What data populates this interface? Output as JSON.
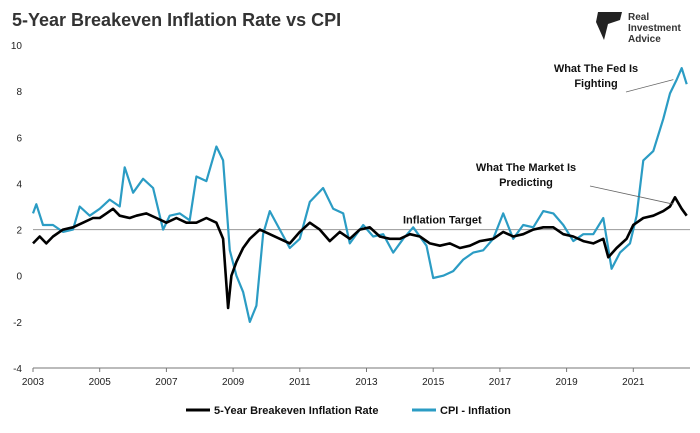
{
  "chart_data": {
    "type": "line",
    "title": "5-Year Breakeven Inflation Rate vs CPI",
    "xlabel": "",
    "ylabel": "",
    "xlim": [
      2003,
      2022.7
    ],
    "ylim": [
      -4,
      10
    ],
    "x_ticks": [
      "2003",
      "2005",
      "2007",
      "2009",
      "2011",
      "2013",
      "2015",
      "2017",
      "2019",
      "2021"
    ],
    "y_ticks": [
      "-4",
      "-2",
      "0",
      "2",
      "4",
      "6",
      "8",
      "10"
    ],
    "grid": false,
    "legend_position": "bottom",
    "reference_line": {
      "value": 2,
      "label": "Inflation Target"
    },
    "annotations": [
      {
        "lines": [
          "What The Fed Is",
          "Fighting"
        ],
        "x": 2021.9,
        "y": 8.7
      },
      {
        "lines": [
          "What The Market Is",
          "Predicting"
        ],
        "x": 2021.75,
        "y": 3.2
      }
    ],
    "series": [
      {
        "name": "5-Year Breakeven Inflation Rate",
        "color": "#000000",
        "points": [
          [
            2003.0,
            1.4
          ],
          [
            2003.2,
            1.7
          ],
          [
            2003.4,
            1.4
          ],
          [
            2003.6,
            1.7
          ],
          [
            2003.9,
            2.0
          ],
          [
            2004.2,
            2.1
          ],
          [
            2004.5,
            2.3
          ],
          [
            2004.8,
            2.5
          ],
          [
            2005.0,
            2.5
          ],
          [
            2005.2,
            2.7
          ],
          [
            2005.4,
            2.9
          ],
          [
            2005.6,
            2.6
          ],
          [
            2005.9,
            2.5
          ],
          [
            2006.1,
            2.6
          ],
          [
            2006.4,
            2.7
          ],
          [
            2006.7,
            2.5
          ],
          [
            2007.0,
            2.3
          ],
          [
            2007.3,
            2.5
          ],
          [
            2007.6,
            2.3
          ],
          [
            2007.9,
            2.3
          ],
          [
            2008.2,
            2.5
          ],
          [
            2008.5,
            2.3
          ],
          [
            2008.7,
            1.6
          ],
          [
            2008.85,
            -1.4
          ],
          [
            2008.95,
            0.0
          ],
          [
            2009.1,
            0.6
          ],
          [
            2009.3,
            1.2
          ],
          [
            2009.5,
            1.6
          ],
          [
            2009.8,
            2.0
          ],
          [
            2010.1,
            1.8
          ],
          [
            2010.4,
            1.6
          ],
          [
            2010.7,
            1.4
          ],
          [
            2011.0,
            1.9
          ],
          [
            2011.3,
            2.3
          ],
          [
            2011.6,
            2.0
          ],
          [
            2011.9,
            1.5
          ],
          [
            2012.2,
            1.9
          ],
          [
            2012.5,
            1.6
          ],
          [
            2012.8,
            2.0
          ],
          [
            2013.1,
            2.1
          ],
          [
            2013.4,
            1.7
          ],
          [
            2013.7,
            1.6
          ],
          [
            2014.0,
            1.6
          ],
          [
            2014.3,
            1.8
          ],
          [
            2014.6,
            1.7
          ],
          [
            2014.9,
            1.4
          ],
          [
            2015.2,
            1.3
          ],
          [
            2015.5,
            1.4
          ],
          [
            2015.8,
            1.2
          ],
          [
            2016.1,
            1.3
          ],
          [
            2016.4,
            1.5
          ],
          [
            2016.8,
            1.6
          ],
          [
            2017.1,
            1.9
          ],
          [
            2017.4,
            1.7
          ],
          [
            2017.7,
            1.8
          ],
          [
            2018.0,
            2.0
          ],
          [
            2018.3,
            2.1
          ],
          [
            2018.6,
            2.1
          ],
          [
            2018.9,
            1.8
          ],
          [
            2019.2,
            1.7
          ],
          [
            2019.5,
            1.5
          ],
          [
            2019.8,
            1.4
          ],
          [
            2020.1,
            1.6
          ],
          [
            2020.25,
            0.8
          ],
          [
            2020.5,
            1.2
          ],
          [
            2020.8,
            1.6
          ],
          [
            2021.0,
            2.2
          ],
          [
            2021.3,
            2.5
          ],
          [
            2021.6,
            2.6
          ],
          [
            2021.9,
            2.8
          ],
          [
            2022.1,
            3.0
          ],
          [
            2022.25,
            3.4
          ],
          [
            2022.45,
            2.9
          ],
          [
            2022.6,
            2.6
          ]
        ]
      },
      {
        "name": "CPI - Inflation",
        "color": "#2b9cc4",
        "points": [
          [
            2003.0,
            2.7
          ],
          [
            2003.1,
            3.1
          ],
          [
            2003.3,
            2.2
          ],
          [
            2003.6,
            2.2
          ],
          [
            2003.9,
            1.9
          ],
          [
            2004.2,
            2.0
          ],
          [
            2004.4,
            3.0
          ],
          [
            2004.7,
            2.6
          ],
          [
            2005.0,
            2.9
          ],
          [
            2005.3,
            3.3
          ],
          [
            2005.6,
            3.0
          ],
          [
            2005.75,
            4.7
          ],
          [
            2006.0,
            3.6
          ],
          [
            2006.3,
            4.2
          ],
          [
            2006.6,
            3.8
          ],
          [
            2006.9,
            2.0
          ],
          [
            2007.1,
            2.6
          ],
          [
            2007.4,
            2.7
          ],
          [
            2007.7,
            2.4
          ],
          [
            2007.9,
            4.3
          ],
          [
            2008.2,
            4.1
          ],
          [
            2008.5,
            5.6
          ],
          [
            2008.7,
            5.0
          ],
          [
            2008.9,
            1.1
          ],
          [
            2009.1,
            0.0
          ],
          [
            2009.3,
            -0.7
          ],
          [
            2009.5,
            -2.0
          ],
          [
            2009.7,
            -1.3
          ],
          [
            2009.9,
            1.8
          ],
          [
            2010.1,
            2.8
          ],
          [
            2010.4,
            2.0
          ],
          [
            2010.7,
            1.2
          ],
          [
            2011.0,
            1.6
          ],
          [
            2011.3,
            3.2
          ],
          [
            2011.7,
            3.8
          ],
          [
            2012.0,
            2.9
          ],
          [
            2012.3,
            2.7
          ],
          [
            2012.5,
            1.4
          ],
          [
            2012.9,
            2.2
          ],
          [
            2013.2,
            1.7
          ],
          [
            2013.5,
            1.8
          ],
          [
            2013.8,
            1.0
          ],
          [
            2014.1,
            1.6
          ],
          [
            2014.4,
            2.1
          ],
          [
            2014.8,
            1.3
          ],
          [
            2015.0,
            -0.1
          ],
          [
            2015.3,
            0.0
          ],
          [
            2015.6,
            0.2
          ],
          [
            2015.9,
            0.7
          ],
          [
            2016.2,
            1.0
          ],
          [
            2016.5,
            1.1
          ],
          [
            2016.8,
            1.6
          ],
          [
            2017.1,
            2.7
          ],
          [
            2017.4,
            1.6
          ],
          [
            2017.7,
            2.2
          ],
          [
            2018.0,
            2.1
          ],
          [
            2018.3,
            2.8
          ],
          [
            2018.6,
            2.7
          ],
          [
            2018.9,
            2.2
          ],
          [
            2019.2,
            1.5
          ],
          [
            2019.5,
            1.8
          ],
          [
            2019.8,
            1.8
          ],
          [
            2020.1,
            2.5
          ],
          [
            2020.35,
            0.3
          ],
          [
            2020.6,
            1.0
          ],
          [
            2020.9,
            1.4
          ],
          [
            2021.1,
            2.6
          ],
          [
            2021.3,
            5.0
          ],
          [
            2021.6,
            5.4
          ],
          [
            2021.9,
            6.8
          ],
          [
            2022.1,
            7.9
          ],
          [
            2022.3,
            8.5
          ],
          [
            2022.45,
            9.0
          ],
          [
            2022.6,
            8.3
          ]
        ]
      }
    ]
  },
  "brand": {
    "line1": "Real",
    "line2": "Investment",
    "line3": "Advice"
  }
}
